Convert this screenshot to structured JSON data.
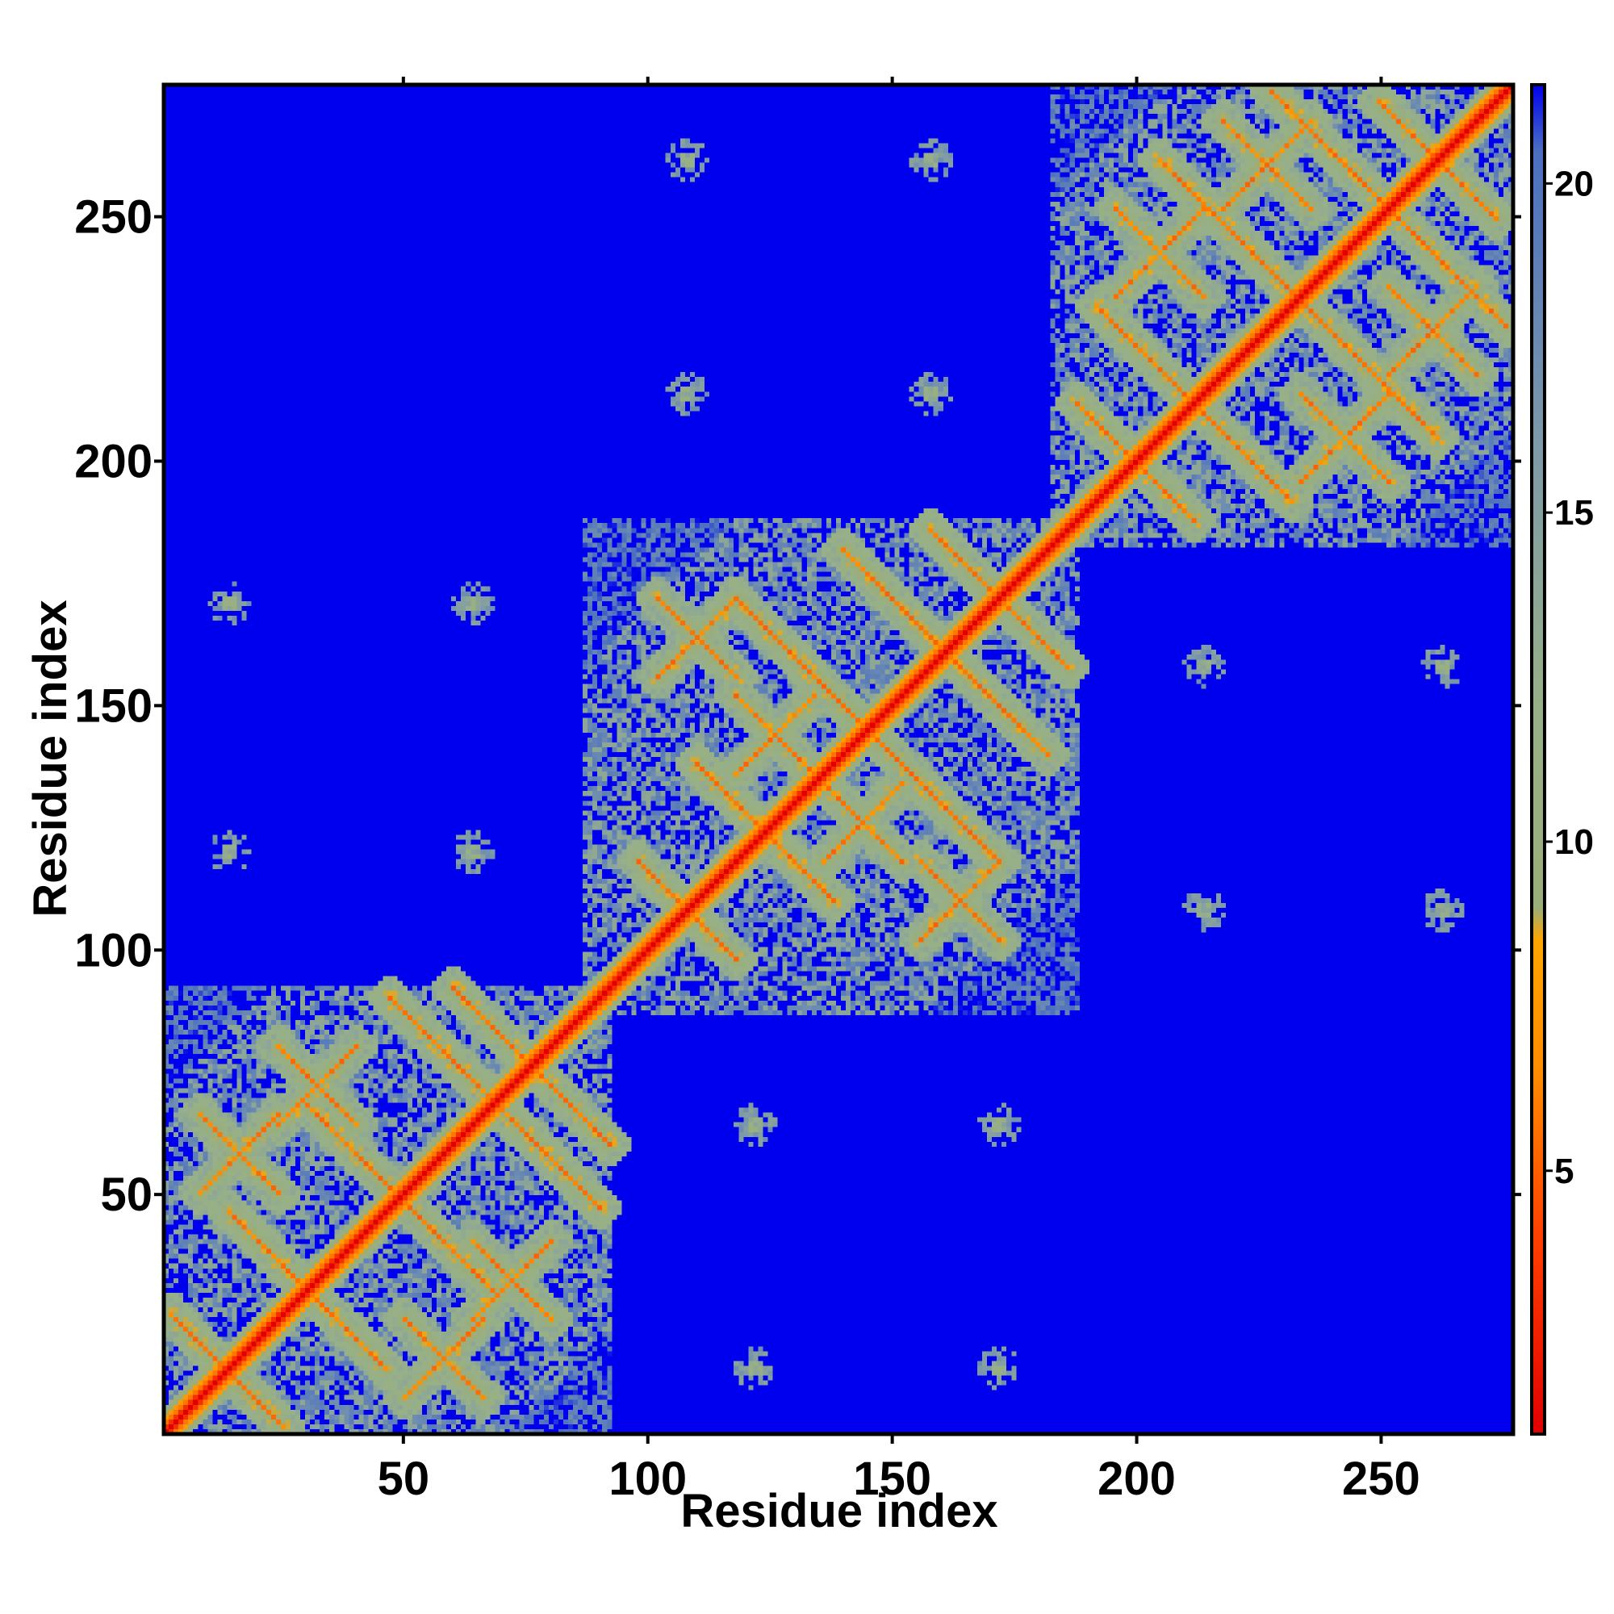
{
  "chart_data": {
    "type": "heatmap",
    "title": "",
    "xlabel": "Residue index",
    "ylabel": "Residue index",
    "n_residues": 277,
    "xlim": [
      1,
      277
    ],
    "ylim": [
      1,
      277
    ],
    "x_ticks": [
      50,
      100,
      150,
      200,
      250
    ],
    "y_ticks": [
      50,
      100,
      150,
      200,
      250
    ],
    "colorbar": {
      "ticks": [
        5,
        10,
        15,
        20
      ],
      "range": [
        1,
        21.5
      ],
      "stops": [
        {
          "value": 1,
          "color": "#e00000"
        },
        {
          "value": 4,
          "color": "#ff4000"
        },
        {
          "value": 6.5,
          "color": "#ff8c00"
        },
        {
          "value": 8.5,
          "color": "#ffa500"
        },
        {
          "value": 9,
          "color": "#9aae7a"
        },
        {
          "value": 12,
          "color": "#98b088"
        },
        {
          "value": 16,
          "color": "#7f9aa8"
        },
        {
          "value": 20.5,
          "color": "#4a6fc0"
        },
        {
          "value": 21.5,
          "color": "#0000ee"
        }
      ]
    },
    "background_color": "#0000ee",
    "background_value": 21.5,
    "diagonal_value": 1,
    "domains": [
      {
        "name": "domain-1",
        "start": 1,
        "end": 92
      },
      {
        "name": "domain-2",
        "start": 87,
        "end": 188
      },
      {
        "name": "domain-3",
        "start": 183,
        "end": 277
      }
    ],
    "strand_contacts": [
      {
        "domain": 1,
        "x": [
          2,
          25
        ],
        "y": [
          25,
          2
        ]
      },
      {
        "domain": 1,
        "x": [
          14,
          46
        ],
        "y": [
          46,
          14
        ]
      },
      {
        "domain": 1,
        "x": [
          30,
          68
        ],
        "y": [
          68,
          30
        ]
      },
      {
        "domain": 1,
        "x": [
          47,
          90
        ],
        "y": [
          90,
          47
        ]
      },
      {
        "domain": 1,
        "x": [
          60,
          92
        ],
        "y": [
          92,
          60
        ]
      },
      {
        "domain": 1,
        "x": [
          24,
          40
        ],
        "y": [
          80,
          64
        ]
      },
      {
        "domain": 1,
        "x": [
          64,
          80
        ],
        "y": [
          24,
          40
        ]
      },
      {
        "domain": 1,
        "x": [
          8,
          24
        ],
        "y": [
          66,
          50
        ]
      },
      {
        "domain": 1,
        "x": [
          50,
          66
        ],
        "y": [
          8,
          24
        ]
      },
      {
        "domain": 1,
        "x": [
          98,
          118
        ],
        "y": [
          118,
          98
        ]
      },
      {
        "domain": 2,
        "x": [
          110,
          138
        ],
        "y": [
          138,
          110
        ]
      },
      {
        "domain": 2,
        "x": [
          118,
          172
        ],
        "y": [
          172,
          118
        ]
      },
      {
        "domain": 2,
        "x": [
          140,
          182
        ],
        "y": [
          182,
          140
        ]
      },
      {
        "domain": 2,
        "x": [
          158,
          186
        ],
        "y": [
          186,
          158
        ]
      },
      {
        "domain": 2,
        "x": [
          102,
          118
        ],
        "y": [
          172,
          156
        ]
      },
      {
        "domain": 2,
        "x": [
          156,
          172
        ],
        "y": [
          102,
          118
        ]
      },
      {
        "domain": 2,
        "x": [
          118,
          134
        ],
        "y": [
          152,
          136
        ]
      },
      {
        "domain": 2,
        "x": [
          136,
          152
        ],
        "y": [
          118,
          134
        ]
      },
      {
        "domain": 3,
        "x": [
          188,
          212
        ],
        "y": [
          212,
          188
        ]
      },
      {
        "domain": 3,
        "x": [
          192,
          232
        ],
        "y": [
          232,
          192
        ]
      },
      {
        "domain": 3,
        "x": [
          205,
          262
        ],
        "y": [
          262,
          205
        ]
      },
      {
        "domain": 3,
        "x": [
          228,
          276
        ],
        "y": [
          276,
          228
        ]
      },
      {
        "domain": 3,
        "x": [
          250,
          274
        ],
        "y": [
          274,
          250
        ]
      },
      {
        "domain": 3,
        "x": [
          196,
          214
        ],
        "y": [
          252,
          234
        ]
      },
      {
        "domain": 3,
        "x": [
          234,
          252
        ],
        "y": [
          196,
          214
        ]
      },
      {
        "domain": 3,
        "x": [
          218,
          236
        ],
        "y": [
          270,
          252
        ]
      },
      {
        "domain": 3,
        "x": [
          252,
          270
        ],
        "y": [
          218,
          236
        ]
      }
    ],
    "isolated_contacts": [
      {
        "x": 14,
        "y": 120
      },
      {
        "x": 14,
        "y": 171
      },
      {
        "x": 64,
        "y": 120
      },
      {
        "x": 64,
        "y": 171
      },
      {
        "x": 108,
        "y": 262
      },
      {
        "x": 108,
        "y": 214
      },
      {
        "x": 158,
        "y": 262
      },
      {
        "x": 158,
        "y": 214
      },
      {
        "x": 122,
        "y": 14
      },
      {
        "x": 122,
        "y": 64
      },
      {
        "x": 172,
        "y": 14
      },
      {
        "x": 172,
        "y": 64
      },
      {
        "x": 214,
        "y": 108
      },
      {
        "x": 214,
        "y": 158
      },
      {
        "x": 263,
        "y": 108
      },
      {
        "x": 263,
        "y": 158
      }
    ]
  }
}
